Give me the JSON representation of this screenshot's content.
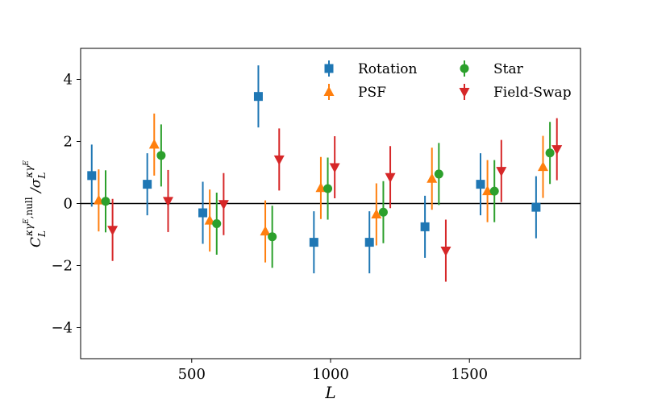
{
  "chart_data": {
    "type": "scatter",
    "xlabel": "L",
    "ylabel": "C_L^{κγ^E,null} / σ_L^{κγ^E}",
    "ylabel_parts": {
      "base": "C",
      "sub": "L",
      "sup": "κγ",
      "supsup": "E",
      "supsuffix": ",null",
      "slash": " /σ",
      "den_sub": "L",
      "den_sup": "κγ",
      "den_supsup": "E"
    },
    "xlim": [
      100,
      1900
    ],
    "ylim": [
      -5,
      5
    ],
    "xticks": [
      500,
      1000,
      1500
    ],
    "yticks": [
      -4,
      -2,
      0,
      2,
      4
    ],
    "xtick_labels": [
      "500",
      "1000",
      "1500"
    ],
    "ytick_labels": [
      "−4",
      "−2",
      "0",
      "2",
      "4"
    ],
    "zero_line": 0,
    "legend_position": "top-right",
    "series": [
      {
        "name": "Rotation",
        "color": "#1f77b4",
        "marker": "square",
        "x": [
          140,
          340,
          540,
          740,
          940,
          1140,
          1340,
          1540,
          1740
        ],
        "y": [
          0.9,
          0.62,
          -0.3,
          3.45,
          -1.25,
          -1.25,
          -0.75,
          0.62,
          -0.12
        ],
        "err": [
          1.0,
          1.0,
          1.0,
          1.0,
          1.0,
          1.0,
          1.0,
          1.0,
          1.0
        ]
      },
      {
        "name": "PSF",
        "color": "#ff7f0e",
        "marker": "triangle-up",
        "x": [
          165,
          365,
          565,
          765,
          965,
          1165,
          1365,
          1565,
          1765
        ],
        "y": [
          0.1,
          1.9,
          -0.55,
          -0.9,
          0.5,
          -0.35,
          0.8,
          0.4,
          1.18
        ],
        "err": [
          1.0,
          1.0,
          1.0,
          1.0,
          1.0,
          1.0,
          1.0,
          1.0,
          1.0
        ]
      },
      {
        "name": "Star",
        "color": "#2ca02c",
        "marker": "circle",
        "x": [
          190,
          390,
          590,
          790,
          990,
          1190,
          1390,
          1590,
          1790
        ],
        "y": [
          0.07,
          1.55,
          -0.65,
          -1.07,
          0.48,
          -0.28,
          0.95,
          0.4,
          1.63
        ],
        "err": [
          1.0,
          1.0,
          1.0,
          1.0,
          1.0,
          1.0,
          1.0,
          1.0,
          1.0
        ]
      },
      {
        "name": "Field-Swap",
        "color": "#d62728",
        "marker": "triangle-down",
        "x": [
          215,
          415,
          615,
          815,
          1015,
          1215,
          1415,
          1615,
          1815
        ],
        "y": [
          -0.85,
          0.08,
          -0.02,
          1.42,
          1.17,
          0.85,
          -1.52,
          1.05,
          1.75
        ],
        "err": [
          1.0,
          1.0,
          1.0,
          1.0,
          1.0,
          1.0,
          1.0,
          1.0,
          1.0
        ]
      }
    ]
  }
}
